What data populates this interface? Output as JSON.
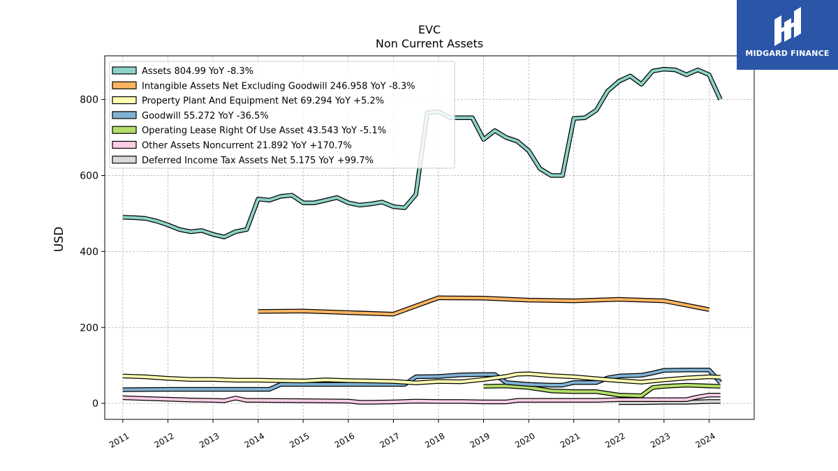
{
  "brand": {
    "name": "MIDGARD FINANCE",
    "bg_color": "#2b56a8"
  },
  "chart_data": {
    "type": "line",
    "title": "EVC",
    "subtitle": "Non Current  Assets",
    "ylabel": "USD",
    "xlabel": "",
    "xlim": [
      2010.6,
      2025.0
    ],
    "ylim": [
      -42,
      915
    ],
    "yticks": [
      0,
      200,
      400,
      600,
      800
    ],
    "xticks": [
      "2011",
      "2012",
      "2013",
      "2014",
      "2015",
      "2016",
      "2017",
      "2018",
      "2019",
      "2020",
      "2021",
      "2022",
      "2023",
      "2024"
    ],
    "grid": true,
    "legend_position": "top-left",
    "series": [
      {
        "name": "Assets  804.99 YoY -8.3%",
        "color": "#8dd3c7",
        "x": [
          2011.0,
          2011.25,
          2011.5,
          2011.75,
          2012.0,
          2012.25,
          2012.5,
          2012.75,
          2013.0,
          2013.25,
          2013.5,
          2013.75,
          2014.0,
          2014.25,
          2014.5,
          2014.75,
          2015.0,
          2015.25,
          2015.5,
          2015.75,
          2016.0,
          2016.25,
          2016.5,
          2016.75,
          2017.0,
          2017.25,
          2017.5,
          2017.75,
          2018.0,
          2018.25,
          2018.5,
          2018.75,
          2019.0,
          2019.25,
          2019.5,
          2019.75,
          2020.0,
          2020.25,
          2020.5,
          2020.75,
          2021.0,
          2021.25,
          2021.5,
          2021.75,
          2022.0,
          2022.25,
          2022.5,
          2022.75,
          2023.0,
          2023.25,
          2023.5,
          2023.75,
          2024.0,
          2024.25
        ],
        "values": [
          490,
          489,
          487,
          480,
          470,
          458,
          452,
          455,
          445,
          438,
          452,
          458,
          538,
          535,
          545,
          548,
          528,
          528,
          535,
          542,
          528,
          522,
          525,
          530,
          518,
          515,
          550,
          765,
          768,
          752,
          752,
          752,
          695,
          718,
          700,
          690,
          665,
          618,
          600,
          600,
          750,
          752,
          772,
          822,
          848,
          862,
          840,
          875,
          880,
          878,
          865,
          878,
          865,
          800
        ]
      },
      {
        "name": "Intangible Assets Net Excluding Goodwill  246.958 YoY -8.3%",
        "color": "#fdb462",
        "x": [
          2014.0,
          2015.0,
          2016.0,
          2017.0,
          2018.0,
          2019.0,
          2020.0,
          2021.0,
          2022.0,
          2023.0,
          2024.0
        ],
        "values": [
          242,
          243,
          239,
          235,
          278,
          277,
          272,
          270,
          274,
          270,
          247
        ]
      },
      {
        "name": "Property Plant And Equipment Net  69.294 YoY +5.2%",
        "color": "#ffffb3",
        "x": [
          2011.0,
          2011.5,
          2012.0,
          2012.5,
          2013.0,
          2013.5,
          2014.0,
          2014.5,
          2015.0,
          2015.5,
          2016.0,
          2016.5,
          2017.0,
          2017.5,
          2018.0,
          2018.5,
          2019.0,
          2019.5,
          2019.75,
          2020.0,
          2020.5,
          2021.0,
          2021.5,
          2022.0,
          2022.5,
          2023.0,
          2023.5,
          2024.0,
          2024.25
        ],
        "values": [
          72,
          70,
          66,
          63,
          63,
          61,
          61,
          60,
          59,
          62,
          60,
          59,
          58,
          54,
          58,
          57,
          63,
          71,
          77,
          78,
          73,
          70,
          65,
          60,
          56,
          62,
          67,
          70,
          69
        ]
      },
      {
        "name": "Goodwill  55.272 YoY -36.5%",
        "color": "#80b1d3",
        "x": [
          2011.0,
          2012.0,
          2013.0,
          2014.0,
          2014.25,
          2014.5,
          2015.0,
          2016.0,
          2017.0,
          2017.25,
          2017.5,
          2018.0,
          2018.5,
          2019.0,
          2019.25,
          2019.5,
          2020.0,
          2020.5,
          2020.75,
          2021.0,
          2021.5,
          2021.75,
          2022.0,
          2022.5,
          2022.75,
          2023.0,
          2023.5,
          2024.0,
          2024.25
        ],
        "values": [
          36,
          37,
          37,
          37,
          37,
          50,
          50,
          50,
          50,
          50,
          70,
          71,
          75,
          76,
          76,
          55,
          50,
          48,
          48,
          55,
          55,
          67,
          72,
          74,
          80,
          87,
          88,
          88,
          55
        ]
      },
      {
        "name": "Operating Lease Right Of Use Asset  43.543 YoY -5.1%",
        "color": "#b3de69",
        "x": [
          2019.0,
          2019.5,
          2020.0,
          2020.5,
          2021.0,
          2021.5,
          2022.0,
          2022.5,
          2022.75,
          2023.0,
          2023.5,
          2024.0,
          2024.25
        ],
        "values": [
          45,
          46,
          42,
          33,
          31,
          31,
          22,
          20,
          42,
          45,
          48,
          46,
          45
        ]
      },
      {
        "name": "Other Assets Noncurrent  21.892 YoY +170.7%",
        "color": "#fccde5",
        "x": [
          2011.0,
          2011.5,
          2012.0,
          2012.5,
          2013.0,
          2013.25,
          2013.5,
          2013.75,
          2014.0,
          2015.0,
          2016.0,
          2016.25,
          2016.5,
          2017.0,
          2017.5,
          2018.0,
          2018.5,
          2019.0,
          2019.5,
          2019.75,
          2020.0,
          2020.5,
          2021.0,
          2021.5,
          2022.0,
          2022.5,
          2023.0,
          2023.5,
          2023.75,
          2024.0,
          2024.25
        ],
        "values": [
          15,
          13,
          11,
          9,
          8,
          7,
          14,
          8,
          8,
          7,
          6,
          3,
          3,
          4,
          6,
          5,
          5,
          4,
          4,
          8,
          8,
          8,
          8,
          8,
          10,
          10,
          10,
          10,
          17,
          22,
          22
        ]
      },
      {
        "name": "Deferred Income Tax Assets Net  5.175 YoY +99.7%",
        "color": "#d9d9d9",
        "x": [
          2022.0,
          2022.5,
          2023.0,
          2023.5,
          2024.0,
          2024.25
        ],
        "values": [
          2,
          2,
          3,
          3,
          5,
          5
        ]
      }
    ]
  }
}
